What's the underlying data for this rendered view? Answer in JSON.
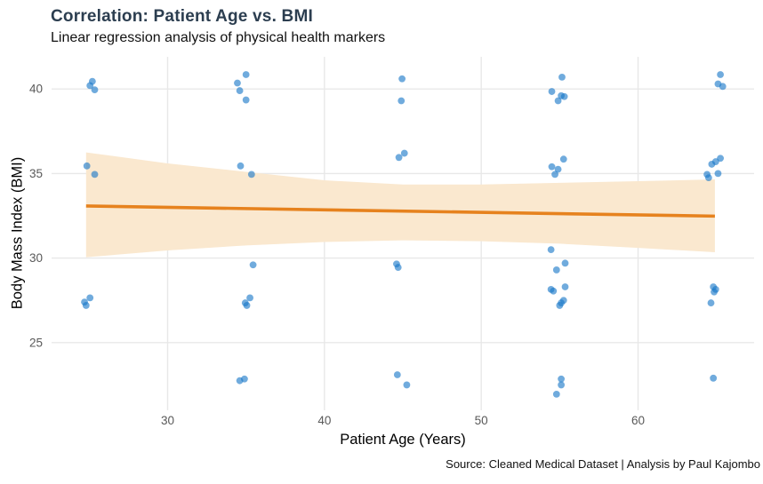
{
  "chart_data": {
    "type": "scatter",
    "title": "Correlation: Patient Age vs. BMI",
    "subtitle": "Linear regression analysis of physical health markers",
    "caption": "Source: Cleaned Medical Dataset | Analysis by Paul Kajombo",
    "xlabel": "Patient Age (Years)",
    "ylabel": "Body Mass Index (BMI)",
    "x_ticks": [
      30,
      40,
      50,
      60
    ],
    "y_ticks": [
      25,
      30,
      35,
      40
    ],
    "xlim": [
      22.6,
      67.4
    ],
    "ylim": [
      21.0,
      41.9
    ],
    "grid": "major-only",
    "legend": "none",
    "points": [
      [
        25.2,
        40.45
      ],
      [
        25.05,
        40.2
      ],
      [
        25.35,
        39.95
      ],
      [
        24.85,
        35.45
      ],
      [
        25.35,
        34.95
      ],
      [
        25.05,
        27.65
      ],
      [
        24.7,
        27.4
      ],
      [
        24.8,
        27.2
      ],
      [
        35.0,
        40.85
      ],
      [
        34.45,
        40.35
      ],
      [
        34.6,
        39.9
      ],
      [
        35.0,
        39.35
      ],
      [
        34.65,
        35.45
      ],
      [
        35.35,
        34.95
      ],
      [
        35.45,
        29.6
      ],
      [
        35.25,
        27.65
      ],
      [
        34.95,
        27.35
      ],
      [
        35.05,
        27.2
      ],
      [
        34.6,
        22.75
      ],
      [
        34.9,
        22.85
      ],
      [
        44.95,
        40.6
      ],
      [
        44.9,
        39.3
      ],
      [
        45.1,
        36.2
      ],
      [
        44.75,
        35.95
      ],
      [
        44.6,
        29.65
      ],
      [
        44.7,
        29.45
      ],
      [
        44.65,
        23.1
      ],
      [
        45.25,
        22.5
      ],
      [
        55.15,
        40.7
      ],
      [
        54.5,
        39.85
      ],
      [
        55.1,
        39.6
      ],
      [
        55.3,
        39.55
      ],
      [
        54.9,
        39.3
      ],
      [
        55.25,
        35.85
      ],
      [
        54.5,
        35.4
      ],
      [
        54.9,
        35.25
      ],
      [
        54.7,
        34.95
      ],
      [
        54.45,
        30.5
      ],
      [
        55.35,
        29.7
      ],
      [
        54.8,
        29.3
      ],
      [
        55.35,
        28.3
      ],
      [
        54.45,
        28.15
      ],
      [
        54.6,
        28.05
      ],
      [
        55.25,
        27.5
      ],
      [
        55.1,
        27.35
      ],
      [
        55.0,
        27.2
      ],
      [
        55.1,
        22.85
      ],
      [
        55.1,
        22.5
      ],
      [
        54.8,
        21.95
      ],
      [
        65.25,
        40.85
      ],
      [
        65.1,
        40.3
      ],
      [
        65.4,
        40.15
      ],
      [
        65.25,
        35.9
      ],
      [
        64.95,
        35.7
      ],
      [
        64.7,
        35.55
      ],
      [
        65.1,
        35.0
      ],
      [
        64.4,
        34.95
      ],
      [
        64.5,
        34.75
      ],
      [
        64.8,
        28.3
      ],
      [
        64.95,
        28.15
      ],
      [
        64.85,
        28.0
      ],
      [
        64.65,
        27.35
      ],
      [
        64.8,
        22.9
      ]
    ],
    "regression_line": {
      "x": [
        24.8,
        64.9
      ],
      "y": [
        33.08,
        32.48
      ]
    },
    "confidence_band": {
      "x": [
        24.8,
        30,
        35,
        40,
        45,
        50,
        55,
        60,
        64.9
      ],
      "upper": [
        36.25,
        35.6,
        35.1,
        34.6,
        34.35,
        34.35,
        34.45,
        34.55,
        34.65
      ],
      "lower": [
        30.05,
        30.45,
        30.75,
        30.95,
        31.05,
        31.0,
        30.85,
        30.6,
        30.35
      ]
    },
    "colors": {
      "point": "#1878C8",
      "line": "#E6821E",
      "band": "#FAE8CF",
      "grid": "#E8E8E8",
      "title": "#2C3E50",
      "tick_text": "#595959",
      "background": "#FFFFFF"
    }
  }
}
